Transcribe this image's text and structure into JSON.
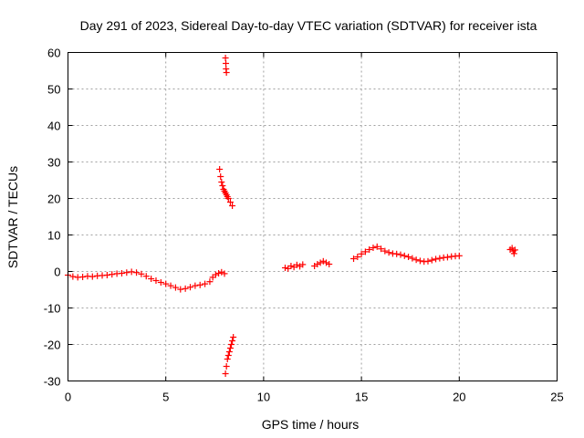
{
  "chart_data": {
    "type": "scatter",
    "title": "Day 291 of 2023, Sidereal Day-to-day VTEC variation (SDTVAR) for receiver ista",
    "xlabel": "GPS time / hours",
    "ylabel": "SDTVAR / TECUs",
    "xlim": [
      0,
      25
    ],
    "ylim": [
      -30,
      60
    ],
    "xticks": [
      0,
      5,
      10,
      15,
      20,
      25
    ],
    "yticks": [
      -30,
      -20,
      -10,
      0,
      10,
      20,
      30,
      40,
      50,
      60
    ],
    "xtick_labels": [
      "0",
      "5",
      "10",
      "15",
      "20",
      "25"
    ],
    "ytick_labels": [
      "-30",
      "-20",
      "-10",
      "0",
      "10",
      "20",
      "30",
      "40",
      "50",
      "60"
    ],
    "grid": true,
    "marker": "+",
    "color": "#ff0000",
    "series": [
      {
        "name": "SDTVAR",
        "points": [
          [
            0.0,
            -1.0
          ],
          [
            0.25,
            -1.4
          ],
          [
            0.5,
            -1.6
          ],
          [
            0.75,
            -1.5
          ],
          [
            1.0,
            -1.3
          ],
          [
            1.25,
            -1.4
          ],
          [
            1.5,
            -1.2
          ],
          [
            1.75,
            -1.1
          ],
          [
            2.0,
            -1.0
          ],
          [
            2.25,
            -0.8
          ],
          [
            2.5,
            -0.6
          ],
          [
            2.75,
            -0.5
          ],
          [
            3.0,
            -0.3
          ],
          [
            3.25,
            -0.1
          ],
          [
            3.5,
            -0.3
          ],
          [
            3.75,
            -0.7
          ],
          [
            4.0,
            -1.3
          ],
          [
            4.25,
            -2.0
          ],
          [
            4.5,
            -2.5
          ],
          [
            4.75,
            -3.0
          ],
          [
            5.0,
            -3.4
          ],
          [
            5.25,
            -3.9
          ],
          [
            5.5,
            -4.4
          ],
          [
            5.75,
            -4.9
          ],
          [
            6.0,
            -4.7
          ],
          [
            6.25,
            -4.3
          ],
          [
            6.5,
            -3.9
          ],
          [
            6.75,
            -3.7
          ],
          [
            7.0,
            -3.4
          ],
          [
            7.25,
            -2.8
          ],
          [
            7.4,
            -1.6
          ],
          [
            7.55,
            -0.9
          ],
          [
            7.7,
            -0.5
          ],
          [
            7.85,
            -0.2
          ],
          [
            8.0,
            -0.6
          ],
          [
            7.75,
            28.0
          ],
          [
            7.8,
            26.0
          ],
          [
            7.85,
            24.5
          ],
          [
            7.9,
            23.5
          ],
          [
            7.95,
            22.5
          ],
          [
            8.0,
            22.0
          ],
          [
            8.05,
            21.5
          ],
          [
            8.1,
            21.0
          ],
          [
            8.15,
            20.5
          ],
          [
            8.2,
            20.0
          ],
          [
            8.3,
            19.0
          ],
          [
            8.4,
            18.0
          ],
          [
            8.05,
            58.5
          ],
          [
            8.07,
            57.0
          ],
          [
            8.08,
            55.5
          ],
          [
            8.1,
            54.5
          ],
          [
            8.05,
            -28.0
          ],
          [
            8.1,
            -26.0
          ],
          [
            8.15,
            -24.0
          ],
          [
            8.2,
            -23.0
          ],
          [
            8.25,
            -22.0
          ],
          [
            8.3,
            -21.0
          ],
          [
            8.35,
            -20.0
          ],
          [
            8.4,
            -19.0
          ],
          [
            8.45,
            -18.0
          ],
          [
            11.1,
            1.0
          ],
          [
            11.25,
            0.8
          ],
          [
            11.4,
            1.5
          ],
          [
            11.55,
            1.2
          ],
          [
            11.7,
            1.8
          ],
          [
            11.85,
            1.4
          ],
          [
            12.0,
            1.9
          ],
          [
            12.6,
            1.5
          ],
          [
            12.75,
            2.0
          ],
          [
            12.9,
            2.4
          ],
          [
            13.05,
            2.8
          ],
          [
            13.2,
            2.4
          ],
          [
            13.35,
            2.0
          ],
          [
            14.6,
            3.5
          ],
          [
            14.8,
            4.0
          ],
          [
            15.0,
            4.8
          ],
          [
            15.2,
            5.4
          ],
          [
            15.4,
            6.0
          ],
          [
            15.6,
            6.5
          ],
          [
            15.8,
            6.8
          ],
          [
            16.0,
            6.2
          ],
          [
            16.2,
            5.6
          ],
          [
            16.4,
            5.2
          ],
          [
            16.6,
            4.9
          ],
          [
            16.8,
            4.8
          ],
          [
            17.0,
            4.6
          ],
          [
            17.2,
            4.3
          ],
          [
            17.4,
            4.0
          ],
          [
            17.6,
            3.6
          ],
          [
            17.8,
            3.2
          ],
          [
            18.0,
            2.9
          ],
          [
            18.2,
            2.7
          ],
          [
            18.4,
            2.8
          ],
          [
            18.6,
            3.1
          ],
          [
            18.8,
            3.4
          ],
          [
            19.0,
            3.6
          ],
          [
            19.2,
            3.8
          ],
          [
            19.4,
            3.9
          ],
          [
            19.6,
            4.1
          ],
          [
            19.8,
            4.2
          ],
          [
            20.0,
            4.3
          ],
          [
            22.6,
            6.0
          ],
          [
            22.7,
            6.4
          ],
          [
            22.75,
            5.6
          ],
          [
            22.8,
            4.9
          ],
          [
            22.85,
            5.9
          ]
        ]
      }
    ]
  }
}
